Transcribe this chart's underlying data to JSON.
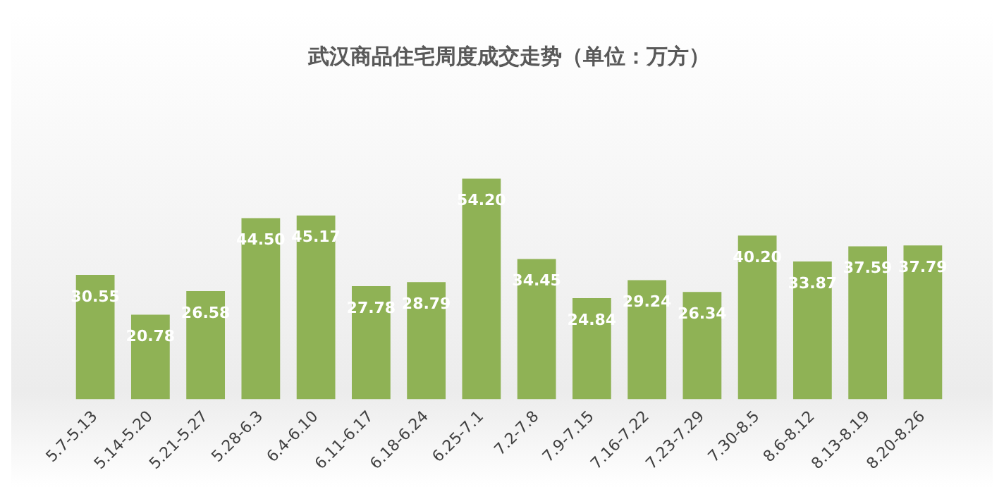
{
  "chart_data": {
    "type": "bar",
    "title": "武汉商品住宅周度成交走势（单位：万方）",
    "categories": [
      "5.7-5.13",
      "5.14-5.20",
      "5.21-5.27",
      "5.28-6.3",
      "6.4-6.10",
      "6.11-6.17",
      "6.18-6.24",
      "6.25-7.1",
      "7.2-7.8",
      "7.9-7.15",
      "7.16-7.22",
      "7.23-7.29",
      "7.30-8.5",
      "8.6-8.12",
      "8.13-8.19",
      "8.20-8.26"
    ],
    "values": [
      30.55,
      20.78,
      26.58,
      44.5,
      45.17,
      27.78,
      28.79,
      54.2,
      34.45,
      24.84,
      29.24,
      26.34,
      40.2,
      33.87,
      37.59,
      37.79
    ],
    "value_labels": [
      "30.55",
      "20.78",
      "26.58",
      "44.50",
      "45.17",
      "27.78",
      "28.79",
      "54.20",
      "34.45",
      "24.84",
      "29.24",
      "26.34",
      "40.20",
      "33.87",
      "37.59",
      "37.79"
    ],
    "color": "#8fb255",
    "grid": false,
    "legend": false,
    "tick_labels": "x"
  }
}
